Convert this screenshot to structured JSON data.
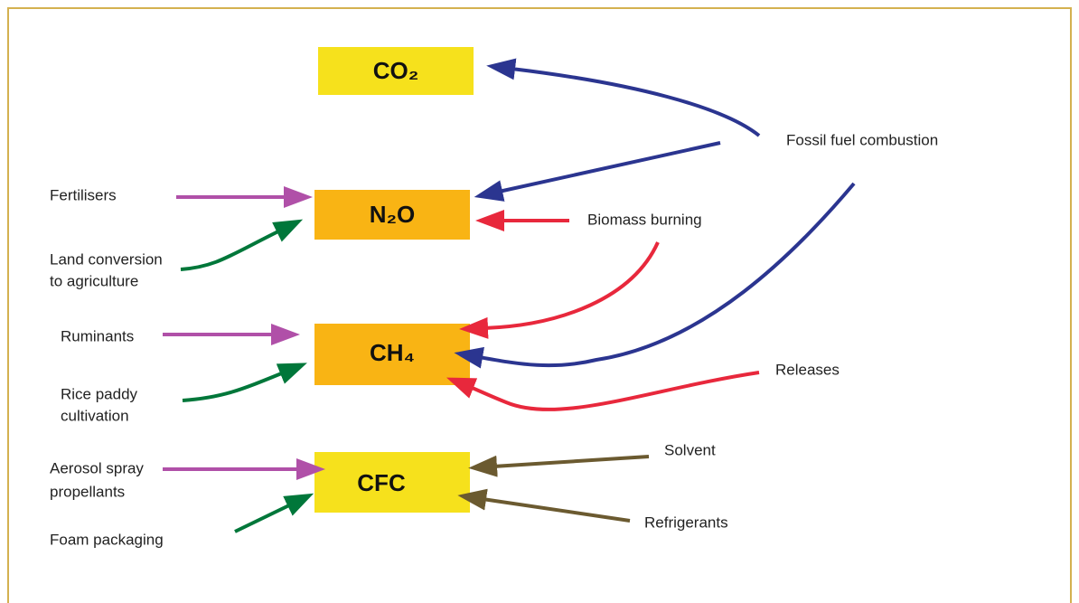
{
  "gases": [
    {
      "label": "CO₂"
    },
    {
      "label": "N₂O"
    },
    {
      "label": "CH₄"
    },
    {
      "label": "CFC"
    }
  ],
  "sources": [
    {
      "label": "Fossil fuel combustion"
    },
    {
      "label": "Fertilisers"
    },
    {
      "label": "Land conversion"
    },
    {
      "label": "to agriculture"
    },
    {
      "label": "Biomass burning"
    },
    {
      "label": "Ruminants"
    },
    {
      "label": "Releases"
    },
    {
      "label": "Rice paddy"
    },
    {
      "label": "cultivation"
    },
    {
      "label": "Aerosol spray"
    },
    {
      "label": "propellants"
    },
    {
      "label": "Solvent"
    },
    {
      "label": "Refrigerants"
    },
    {
      "label": "Foam packaging"
    }
  ]
}
